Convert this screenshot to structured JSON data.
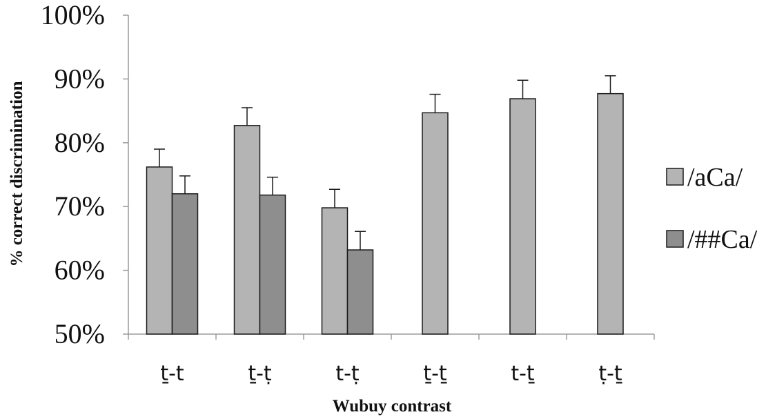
{
  "chart_data": {
    "type": "bar",
    "title": "",
    "xlabel": "Wubuy contrast",
    "ylabel": "% correct discrimination",
    "ylim": [
      50,
      100
    ],
    "yticks": [
      "50%",
      "60%",
      "70%",
      "80%",
      "90%",
      "100%"
    ],
    "ytick_values": [
      50,
      60,
      70,
      80,
      90,
      100
    ],
    "categories": [
      "ṯ-t",
      "ṯ-ṭ",
      "t-ṭ",
      "ṯ-ṯ",
      "t-ṯ",
      "ṭ-ṯ"
    ],
    "grid": false,
    "legend_position": "right",
    "series": [
      {
        "name": "/aCa/",
        "color": "#b4b4b4",
        "values": [
          76.2,
          82.7,
          69.8,
          84.7,
          86.9,
          87.7
        ],
        "error": [
          2.8,
          2.8,
          2.9,
          2.9,
          2.9,
          2.8
        ]
      },
      {
        "name": "/##Ca/",
        "color": "#8e8e8e",
        "values": [
          72.0,
          71.8,
          63.2,
          null,
          null,
          null
        ],
        "error": [
          2.8,
          2.8,
          2.9,
          null,
          null,
          null
        ]
      }
    ]
  }
}
